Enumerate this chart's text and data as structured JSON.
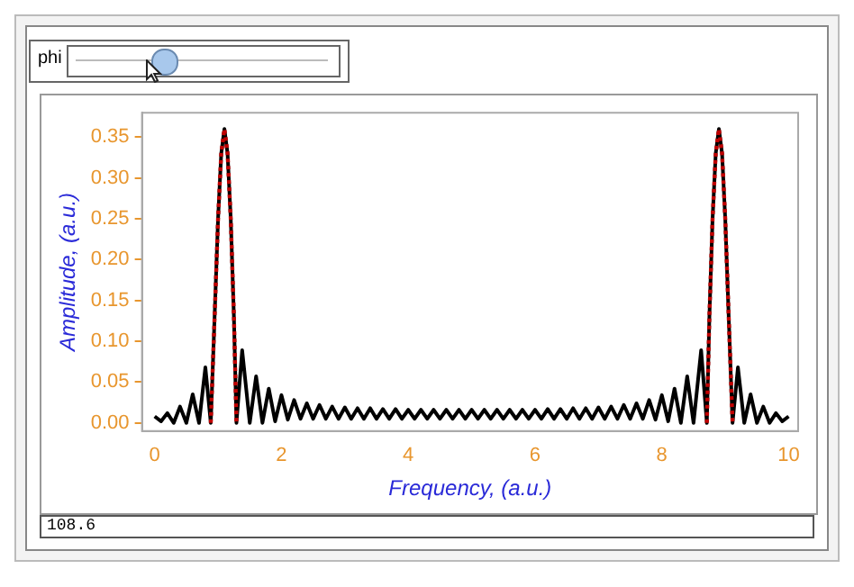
{
  "chart_data": {
    "type": "line",
    "xlabel": "Frequency, (a.u.)",
    "ylabel": "Amplitude, (a.u.)",
    "annotations": [
      "phi",
      "108.6"
    ],
    "xlim": [
      -0.2,
      10.15
    ],
    "ylim": [
      -0.01,
      0.38
    ],
    "xticks": [
      0,
      2,
      4,
      6,
      8,
      10
    ],
    "yticks": [
      {
        "value": 0,
        "label": "0.00"
      },
      {
        "value": 0.05,
        "label": "0.05"
      },
      {
        "value": 0.1,
        "label": "0.10"
      },
      {
        "value": 0.15,
        "label": "0.15"
      },
      {
        "value": 0.2,
        "label": "0.20"
      },
      {
        "value": 0.25,
        "label": "0.25"
      },
      {
        "value": 0.3,
        "label": "0.30"
      },
      {
        "value": 0.35,
        "label": "0.35"
      }
    ],
    "series": [
      {
        "color": "#000000",
        "line_style": "solid",
        "x": [
          0,
          0.1,
          0.2,
          0.3,
          0.4,
          0.5,
          0.6,
          0.7,
          0.8,
          0.885,
          0.95,
          1.0,
          1.05,
          1.1,
          1.15,
          1.2,
          1.25,
          1.29,
          1.38,
          1.5,
          1.6,
          1.7,
          1.8,
          1.9,
          2.0,
          2.1,
          2.2,
          2.3,
          2.4,
          2.5,
          2.6,
          2.7,
          2.8,
          2.9,
          3.0,
          3.1,
          3.2,
          3.3,
          3.4,
          3.5,
          3.6,
          3.7,
          3.8,
          3.9,
          4.0,
          4.1,
          4.2,
          4.3,
          4.4,
          4.5,
          4.6,
          4.7,
          4.8,
          4.9,
          5.0,
          5.1,
          5.2,
          5.3,
          5.4,
          5.5,
          5.6,
          5.7,
          5.8,
          5.9,
          6.0,
          6.1,
          6.2,
          6.3,
          6.4,
          6.5,
          6.6,
          6.7,
          6.8,
          6.9,
          7.0,
          7.1,
          7.2,
          7.3,
          7.4,
          7.5,
          7.6,
          7.7,
          7.8,
          7.9,
          8.0,
          8.1,
          8.2,
          8.3,
          8.4,
          8.5,
          8.62,
          8.71,
          8.75,
          8.8,
          8.85,
          8.9,
          8.95,
          9.0,
          9.05,
          9.115,
          9.2,
          9.3,
          9.4,
          9.5,
          9.6,
          9.7,
          9.8,
          9.9,
          10
        ],
        "values": [
          0.008,
          0.002,
          0.012,
          0,
          0.02,
          0,
          0.035,
          0,
          0.068,
          0,
          0.14,
          0.25,
          0.33,
          0.36,
          0.33,
          0.25,
          0.13,
          0,
          0.089,
          0,
          0.057,
          0,
          0.042,
          0.002,
          0.034,
          0.004,
          0.028,
          0.005,
          0.024,
          0.005,
          0.022,
          0.005,
          0.02,
          0.005,
          0.019,
          0.005,
          0.018,
          0.005,
          0.018,
          0.005,
          0.017,
          0.005,
          0.017,
          0.005,
          0.016,
          0.005,
          0.016,
          0.005,
          0.016,
          0.005,
          0.016,
          0.005,
          0.016,
          0.005,
          0.016,
          0.005,
          0.016,
          0.005,
          0.016,
          0.005,
          0.016,
          0.005,
          0.016,
          0.005,
          0.016,
          0.005,
          0.017,
          0.005,
          0.017,
          0.005,
          0.018,
          0.005,
          0.018,
          0.005,
          0.019,
          0.005,
          0.02,
          0.005,
          0.022,
          0.005,
          0.024,
          0.005,
          0.028,
          0.004,
          0.034,
          0.002,
          0.042,
          0,
          0.057,
          0,
          0.089,
          0,
          0.13,
          0.25,
          0.33,
          0.36,
          0.33,
          0.25,
          0.14,
          0,
          0.068,
          0,
          0.035,
          0,
          0.02,
          0,
          0.012,
          0.002,
          0.008
        ]
      },
      {
        "color": "#c00000",
        "line_style": "dotted",
        "x": [
          0.885,
          0.95,
          1.0,
          1.05,
          1.1,
          1.15,
          1.2,
          1.25,
          1.29,
          5,
          8.71,
          8.75,
          8.8,
          8.85,
          8.9,
          8.95,
          9.0,
          9.05,
          9.115
        ],
        "values": [
          0,
          0.14,
          0.25,
          0.33,
          0.36,
          0.33,
          0.25,
          0.13,
          0,
          null,
          0,
          0.13,
          0.25,
          0.33,
          0.36,
          0.33,
          0.25,
          0.14,
          0
        ]
      }
    ]
  }
}
